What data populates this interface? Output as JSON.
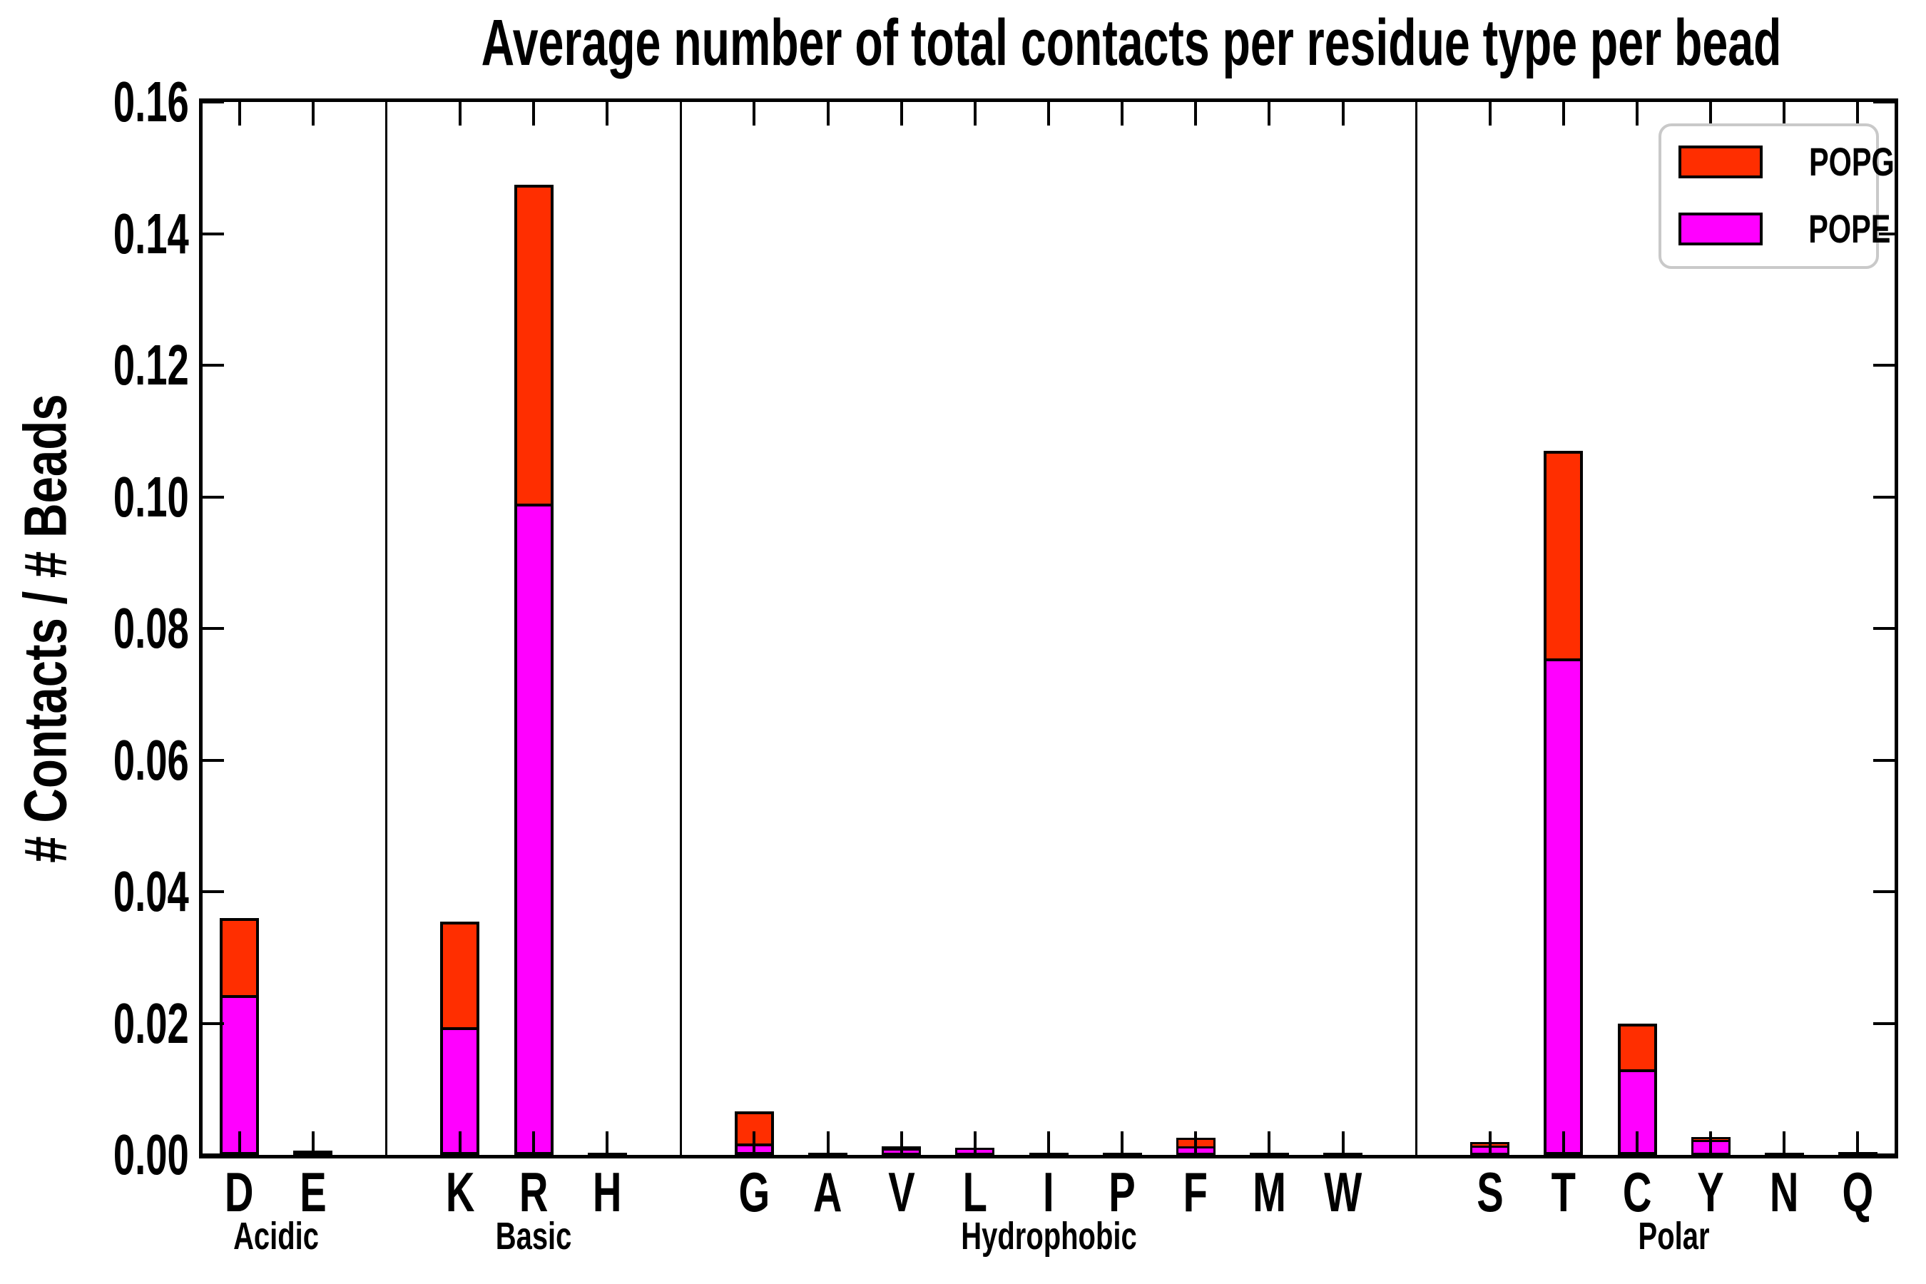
{
  "title": "Average number of total contacts per residue type per bead",
  "ylabel": "# Contacts / # Beads",
  "colors": {
    "popg": "#ff2e00",
    "pope": "#ff00ff",
    "frame": "#000000",
    "legend_border": "#c9c9c9",
    "background": "#ffffff"
  },
  "legend": {
    "position": "upper right",
    "entries": [
      {
        "label": "POPG",
        "color": "#ff2e00"
      },
      {
        "label": "POPE",
        "color": "#ff00ff"
      }
    ]
  },
  "yticks": [
    "0.00",
    "0.02",
    "0.04",
    "0.06",
    "0.08",
    "0.10",
    "0.12",
    "0.14",
    "0.16"
  ],
  "chart_data": {
    "type": "bar",
    "stacked": true,
    "title": "Average number of total contacts per residue type per bead",
    "xlabel": "",
    "ylabel": "# Contacts / # Beads",
    "ylim": [
      0,
      0.16
    ],
    "ytick_step": 0.02,
    "grid": false,
    "legend_position": "upper right",
    "categories": [
      "D",
      "E",
      "K",
      "R",
      "H",
      "G",
      "A",
      "V",
      "L",
      "I",
      "P",
      "F",
      "M",
      "W",
      "S",
      "T",
      "C",
      "Y",
      "N",
      "Q"
    ],
    "groups": [
      {
        "label": "Acidic",
        "members": [
          "D",
          "E"
        ]
      },
      {
        "label": "Basic",
        "members": [
          "K",
          "R",
          "H"
        ]
      },
      {
        "label": "Hydrophobic",
        "members": [
          "G",
          "A",
          "V",
          "L",
          "I",
          "P",
          "F",
          "M",
          "W"
        ]
      },
      {
        "label": "Polar",
        "members": [
          "S",
          "T",
          "C",
          "Y",
          "N",
          "Q"
        ]
      }
    ],
    "series": [
      {
        "name": "POPE",
        "color": "#ff00ff",
        "values": [
          0.024,
          0.0003,
          0.019,
          0.0987,
          0.0001,
          0.001,
          0.0001,
          0.0008,
          0.0007,
          0.0001,
          0.0001,
          0.0008,
          0.0001,
          0.0001,
          0.0011,
          0.0752,
          0.0127,
          0.0022,
          0.0001,
          0.0002
        ]
      },
      {
        "name": "POPG",
        "color": "#ff2e00",
        "values": [
          0.012,
          0.0003,
          0.0165,
          0.0487,
          0.0002,
          0.0056,
          0.0001,
          0.0005,
          0.0004,
          0.0001,
          0.0001,
          0.0018,
          0.0001,
          0.0002,
          0.0009,
          0.0318,
          0.0072,
          0.0005,
          0.0001,
          0.0002
        ]
      }
    ]
  }
}
